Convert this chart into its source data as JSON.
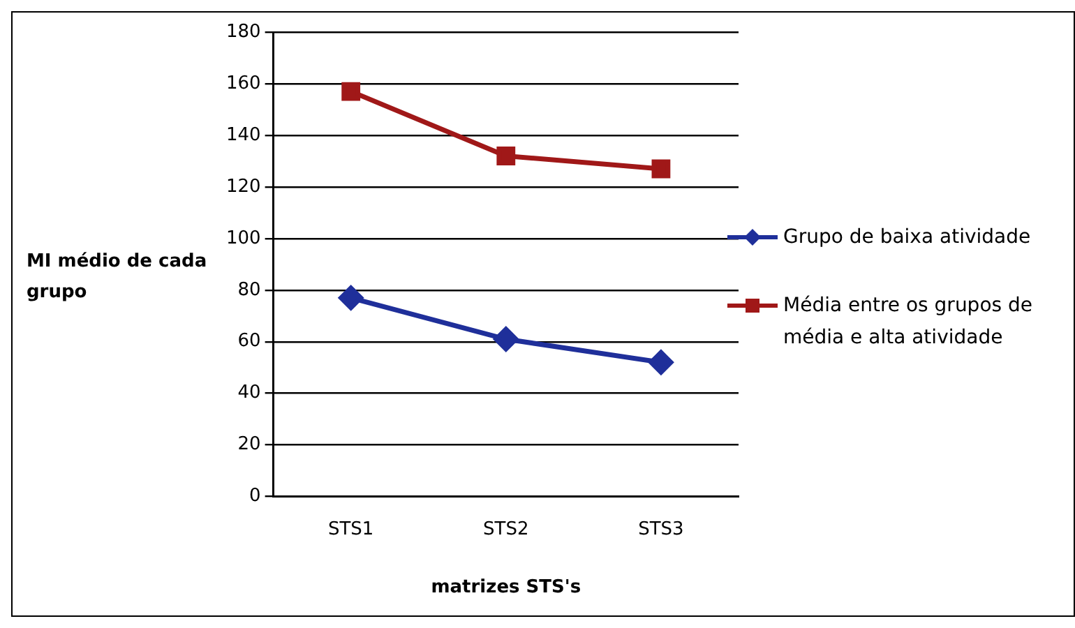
{
  "chart_data": {
    "type": "line",
    "xlabel": "matrizes STS's",
    "ylabel": "MI médio de cada grupo",
    "categories": [
      "STS1",
      "STS2",
      "STS3"
    ],
    "series": [
      {
        "name": "Grupo de baixa atividade",
        "color": "#1f2f9a",
        "values": [
          77,
          61,
          52
        ],
        "marker": "diamond"
      },
      {
        "name": "Média entre os grupos de média e alta atividade",
        "color": "#a01818",
        "values": [
          157,
          132,
          127
        ],
        "marker": "square"
      }
    ],
    "ylim": [
      0,
      180
    ],
    "yticks": [
      0,
      20,
      40,
      60,
      80,
      100,
      120,
      140,
      160,
      180
    ],
    "grid": "y",
    "legend": "right"
  }
}
